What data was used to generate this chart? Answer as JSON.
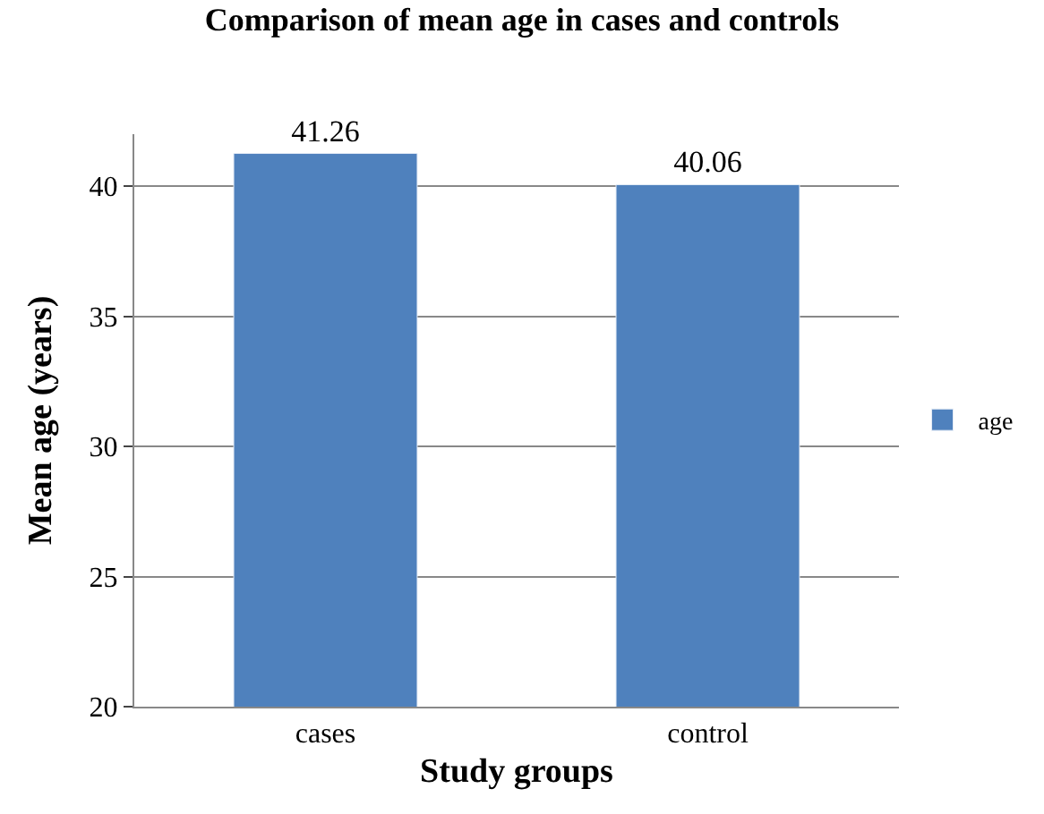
{
  "chart_data": {
    "type": "bar",
    "title": "Comparison of mean age in cases and controls",
    "xlabel": "Study groups",
    "ylabel": "Mean age (years)",
    "categories": [
      "cases",
      "control"
    ],
    "series": [
      {
        "name": "age",
        "color": "#4f81bd",
        "values": [
          41.26,
          40.06
        ]
      }
    ],
    "ylim": [
      20,
      42
    ],
    "yticks": [
      20,
      25,
      30,
      35,
      40
    ],
    "grid": "y",
    "legend": "right",
    "data_labels": true
  }
}
